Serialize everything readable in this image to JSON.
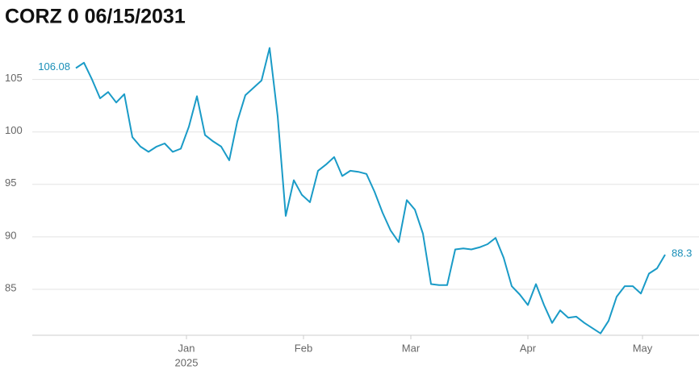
{
  "chart_data": {
    "type": "line",
    "title": "CORZ 0 06/15/2031",
    "color": "#1a9bc7",
    "grid": true,
    "values": [
      106.08,
      106.6,
      105.0,
      103.2,
      103.8,
      102.8,
      103.6,
      99.5,
      98.6,
      98.1,
      98.6,
      98.9,
      98.1,
      98.4,
      100.5,
      103.4,
      99.7,
      99.1,
      98.6,
      97.3,
      101.0,
      103.5,
      104.2,
      104.9,
      108.0,
      101.5,
      92.0,
      95.4,
      94.0,
      93.3,
      96.3,
      96.9,
      97.6,
      95.8,
      96.3,
      96.2,
      96.0,
      94.3,
      92.3,
      90.6,
      89.5,
      93.5,
      92.6,
      90.3,
      85.5,
      85.4,
      85.4,
      88.8,
      88.9,
      88.8,
      89.0,
      89.3,
      89.9,
      88.0,
      85.3,
      84.5,
      83.5,
      85.5,
      83.5,
      81.8,
      83.0,
      82.3,
      82.4,
      81.8,
      81.3,
      80.8,
      82.0,
      84.3,
      85.3,
      85.3,
      84.6,
      86.5,
      87.0,
      88.3
    ],
    "xlim": [
      0,
      73
    ],
    "xticks": [
      {
        "value": 13.7,
        "label": "Jan"
      },
      {
        "value": 28.2,
        "label": "Feb"
      },
      {
        "value": 41.5,
        "label": "Mar"
      },
      {
        "value": 56,
        "label": "Apr"
      },
      {
        "value": 70.2,
        "label": "May"
      }
    ],
    "xtick_year": "2025",
    "ylim": [
      80.7,
      109.5
    ],
    "yticks": [
      85,
      90,
      95,
      100,
      105
    ]
  }
}
